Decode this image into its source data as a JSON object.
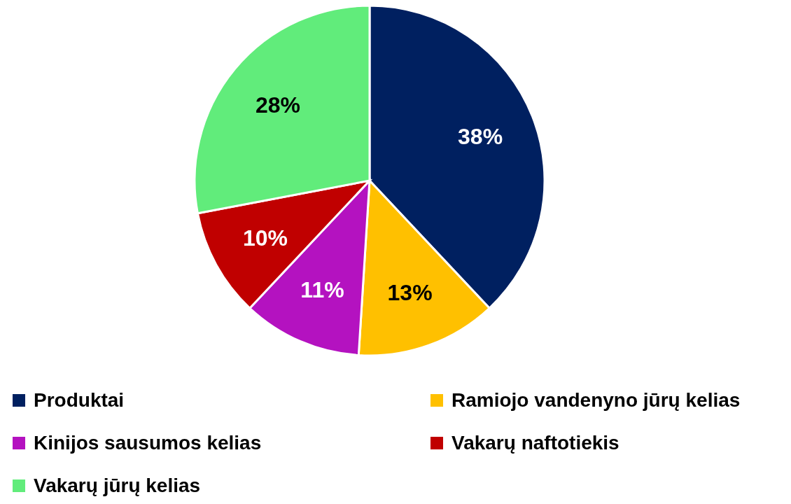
{
  "chart_data": {
    "type": "pie",
    "categories": [
      "Produktai",
      "Ramiojo vandenyno jūrų kelias",
      "Kinijos sausumos kelias",
      "Vakarų naftotiekis",
      "Vakarų jūrų kelias"
    ],
    "values": [
      38,
      13,
      11,
      10,
      28
    ],
    "colors": [
      "#002060",
      "#ffc000",
      "#b412c0",
      "#c00000",
      "#61ec7b"
    ],
    "value_labels": [
      "38%",
      "13%",
      "11%",
      "10%",
      "28%"
    ],
    "legend": "bottom"
  }
}
